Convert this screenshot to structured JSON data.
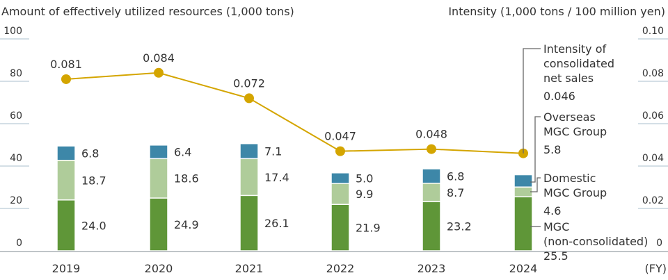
{
  "chart_data": {
    "type": "bar",
    "stacked": true,
    "left_axis_title": "Amount of effectively utilized resources (1,000 tons)",
    "right_axis_title": "Intensity (1,000 tons / 100 million yen)",
    "x_unit": "(FY)",
    "categories": [
      "2019",
      "2020",
      "2021",
      "2022",
      "2023",
      "2024"
    ],
    "ylim": [
      0,
      100
    ],
    "yticks": [
      "0",
      "20",
      "40",
      "60",
      "80",
      "100"
    ],
    "y2lim": [
      0,
      0.1
    ],
    "y2ticks": [
      "0",
      "0.02",
      "0.04",
      "0.06",
      "0.08",
      "0.10"
    ],
    "series": [
      {
        "name": "MGC (non-consolidated)",
        "color": "#5f9638",
        "values": [
          24.0,
          24.9,
          26.1,
          21.9,
          23.2,
          25.5
        ],
        "labels": [
          "24.0",
          "24.9",
          "26.1",
          "21.9",
          "23.2",
          "25.5"
        ]
      },
      {
        "name": "Domestic MGC Group",
        "color": "#afcc9a",
        "values": [
          18.7,
          18.6,
          17.4,
          9.9,
          8.7,
          4.6
        ],
        "labels": [
          "18.7",
          "18.6",
          "17.4",
          "9.9",
          "8.7",
          "4.6"
        ]
      },
      {
        "name": "Overseas MGC Group",
        "color": "#3d87a8",
        "values": [
          6.8,
          6.4,
          7.1,
          5.0,
          6.8,
          5.8
        ],
        "labels": [
          "6.8",
          "6.4",
          "7.1",
          "5.0",
          "6.8",
          "5.8"
        ]
      }
    ],
    "line": {
      "name": "Intensity of consolidated net sales",
      "color": "#d4a500",
      "axis": "right",
      "values": [
        0.081,
        0.084,
        0.072,
        0.047,
        0.048,
        0.046
      ],
      "labels": [
        "0.081",
        "0.084",
        "0.072",
        "0.047",
        "0.048",
        "0.046"
      ]
    },
    "legend": {
      "placement": "right-annotations",
      "line": [
        "Intensity of",
        "consolidated",
        "net sales",
        "0.046"
      ],
      "overseas": [
        "Overseas",
        "MGC Group",
        "5.8"
      ],
      "domestic": [
        "Domestic",
        "MGC Group",
        "4.6"
      ],
      "mgc": [
        "MGC",
        "(non-consolidated)",
        "25.5"
      ]
    },
    "grid": true
  }
}
